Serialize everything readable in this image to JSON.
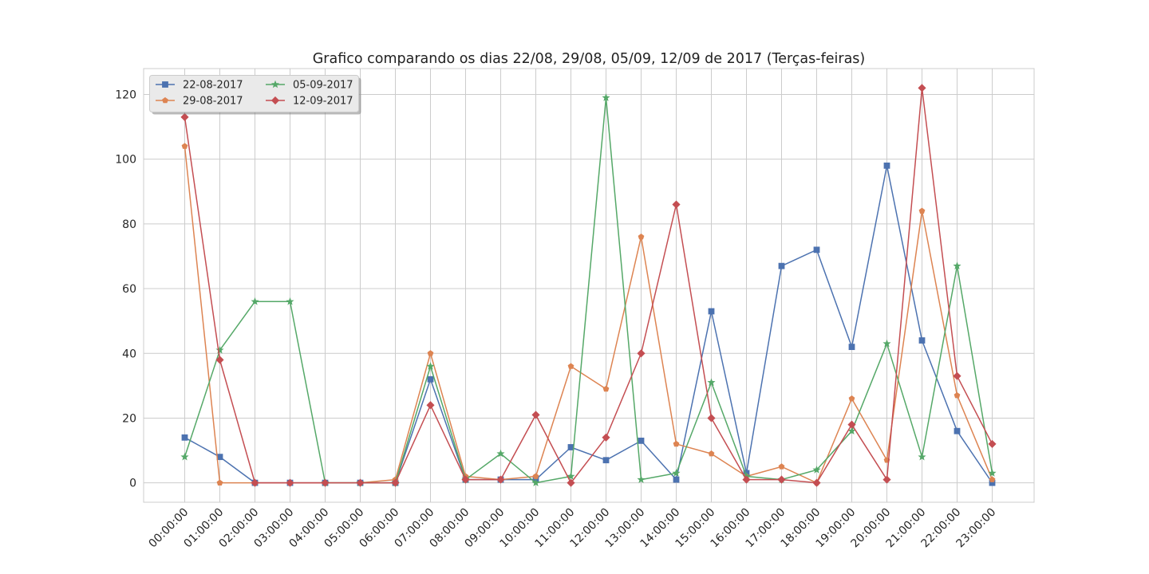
{
  "chart_data": {
    "type": "line",
    "title": "Grafico comparando os dias 22/08, 29/08, 05/09, 12/09 de 2017 (Terças-feiras)",
    "xlabel": "",
    "ylabel": "",
    "categories": [
      "00:00:00",
      "01:00:00",
      "02:00:00",
      "03:00:00",
      "04:00:00",
      "05:00:00",
      "06:00:00",
      "07:00:00",
      "08:00:00",
      "09:00:00",
      "10:00:00",
      "11:00:00",
      "12:00:00",
      "13:00:00",
      "14:00:00",
      "15:00:00",
      "16:00:00",
      "17:00:00",
      "18:00:00",
      "19:00:00",
      "20:00:00",
      "21:00:00",
      "22:00:00",
      "23:00:00"
    ],
    "ylim": [
      -6,
      128
    ],
    "yticks": [
      0,
      20,
      40,
      60,
      80,
      100,
      120
    ],
    "grid": true,
    "legend_position": "top-left",
    "series": [
      {
        "name": "22-08-2017",
        "color": "#4c72b0",
        "marker": "square",
        "values": [
          14,
          8,
          0,
          0,
          0,
          0,
          0,
          32,
          1,
          1,
          1,
          11,
          7,
          13,
          1,
          53,
          3,
          67,
          72,
          42,
          98,
          44,
          16,
          0
        ]
      },
      {
        "name": "29-08-2017",
        "color": "#dd8452",
        "marker": "pentagon",
        "values": [
          104,
          0,
          0,
          0,
          0,
          0,
          1,
          40,
          2,
          1,
          2,
          36,
          29,
          76,
          12,
          9,
          2,
          5,
          0,
          26,
          7,
          84,
          27,
          1
        ]
      },
      {
        "name": "05-09-2017",
        "color": "#55a868",
        "marker": "star",
        "values": [
          8,
          41,
          56,
          56,
          0,
          0,
          0,
          36,
          1,
          9,
          0,
          2,
          119,
          1,
          3,
          31,
          2,
          1,
          4,
          16,
          43,
          8,
          67,
          3
        ]
      },
      {
        "name": "12-09-2017",
        "color": "#c44e52",
        "marker": "diamond",
        "values": [
          113,
          38,
          0,
          0,
          0,
          0,
          0,
          24,
          1,
          1,
          21,
          0,
          14,
          40,
          86,
          20,
          1,
          1,
          0,
          18,
          1,
          122,
          33,
          12
        ]
      }
    ]
  }
}
